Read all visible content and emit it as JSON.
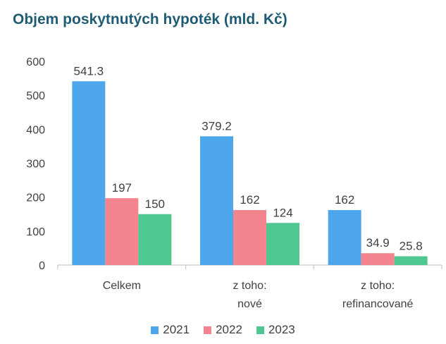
{
  "chart_data": {
    "type": "bar",
    "title": "Objem poskytnutých hypoték (mld. Kč)",
    "categories": [
      [
        "Celkem"
      ],
      [
        "z toho:",
        "nové"
      ],
      [
        "z toho:",
        "refinancované"
      ]
    ],
    "series": [
      {
        "name": "2021",
        "color": "#4ea7ec",
        "values": [
          541.3,
          379.2,
          162
        ],
        "labels": [
          "541.3",
          "379.2",
          "162"
        ]
      },
      {
        "name": "2022",
        "color": "#f4858e",
        "values": [
          197,
          162,
          34.9
        ],
        "labels": [
          "197",
          "162",
          "34.9"
        ]
      },
      {
        "name": "2023",
        "color": "#4ec790",
        "values": [
          150,
          124,
          25.8
        ],
        "labels": [
          "150",
          "124",
          "25.8"
        ]
      }
    ],
    "yticks": [
      0,
      100,
      200,
      300,
      400,
      500,
      600
    ],
    "ylim": [
      0,
      600
    ],
    "grid": false,
    "legend_position": "bottom"
  }
}
